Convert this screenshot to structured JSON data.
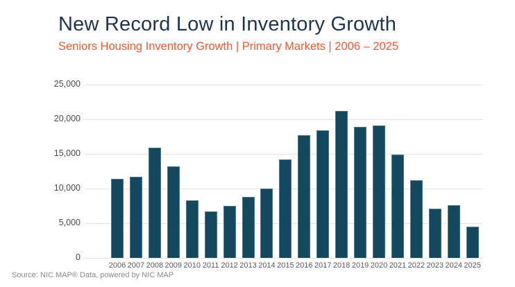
{
  "header": {
    "title": "New Record Low in Inventory Growth",
    "subtitle": "Seniors Housing Inventory Growth | Primary Markets | 2006 – 2025"
  },
  "chart_data": {
    "type": "bar",
    "title": "New Record Low in Inventory Growth",
    "subtitle": "Seniors Housing Inventory Growth | Primary Markets | 2006 – 2025",
    "categories": [
      "2006",
      "2007",
      "2008",
      "2009",
      "2010",
      "2011",
      "2012",
      "2013",
      "2014",
      "2015",
      "2016",
      "2017",
      "2018",
      "2019",
      "2020",
      "2021",
      "2022",
      "2023",
      "2024",
      "2025"
    ],
    "values": [
      11400,
      11700,
      15900,
      13200,
      8300,
      6700,
      7500,
      8800,
      10000,
      14200,
      17700,
      18400,
      21200,
      18900,
      19100,
      14900,
      11200,
      7100,
      7600,
      4500
    ],
    "xlabel": "",
    "ylabel": "",
    "ylim": [
      0,
      25000
    ],
    "yticks": [
      {
        "value": 0,
        "label": "0"
      },
      {
        "value": 5000,
        "label": "5,000"
      },
      {
        "value": 10000,
        "label": "10,000"
      },
      {
        "value": 15000,
        "label": "15,000"
      },
      {
        "value": 20000,
        "label": "20,000"
      },
      {
        "value": 25000,
        "label": "25,000"
      }
    ],
    "grid": true,
    "legend": "none",
    "bar_color": "#14485F"
  },
  "footer": {
    "source": "Source: NIC MAP® Data, powered by NIC MAP"
  },
  "colors": {
    "title": "#1D3552",
    "subtitle": "#F0592B",
    "bar": "#14485F",
    "gridline": "#E4E4E4",
    "axis_text": "#4A4A4A",
    "source_text": "#8A8A8A"
  }
}
